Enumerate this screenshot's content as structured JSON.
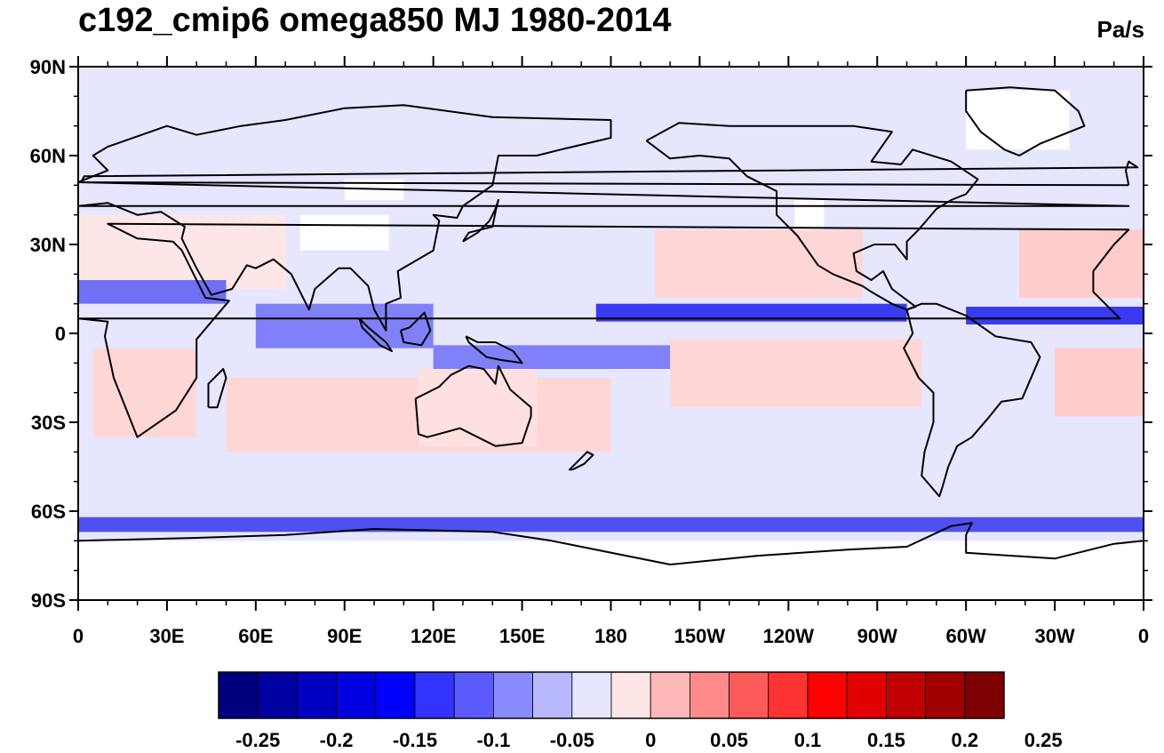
{
  "title": "c192_cmip6 omega850 MJ 1980-2014",
  "units": "Pa/s",
  "map": {
    "projection": "cylindrical-equidistant",
    "center_longitude": 180,
    "lon_range": [
      0,
      360
    ],
    "lat_range": [
      -90,
      90
    ],
    "lat_ticks": [
      {
        "value": 90,
        "label": "90N"
      },
      {
        "value": 60,
        "label": "60N"
      },
      {
        "value": 30,
        "label": "30N"
      },
      {
        "value": 0,
        "label": "0"
      },
      {
        "value": -30,
        "label": "30S"
      },
      {
        "value": -60,
        "label": "60S"
      },
      {
        "value": -90,
        "label": "90S"
      }
    ],
    "lon_ticks": [
      {
        "value": 0,
        "label": "0"
      },
      {
        "value": 30,
        "label": "30E"
      },
      {
        "value": 60,
        "label": "60E"
      },
      {
        "value": 90,
        "label": "90E"
      },
      {
        "value": 120,
        "label": "120E"
      },
      {
        "value": 150,
        "label": "150E"
      },
      {
        "value": 180,
        "label": "180"
      },
      {
        "value": 210,
        "label": "150W"
      },
      {
        "value": 240,
        "label": "120W"
      },
      {
        "value": 270,
        "label": "90W"
      },
      {
        "value": 300,
        "label": "60W"
      },
      {
        "value": 330,
        "label": "30W"
      },
      {
        "value": 360,
        "label": "0"
      }
    ],
    "background_color": "#e6e6ff",
    "features": [
      {
        "kind": "subsidence",
        "color": "#ffd6d6",
        "lon": [
          195,
          265
        ],
        "lat": [
          12,
          35
        ]
      },
      {
        "kind": "subsidence",
        "color": "#ffd6d6",
        "lon": [
          200,
          285
        ],
        "lat": [
          -25,
          -2
        ]
      },
      {
        "kind": "subsidence",
        "color": "#ffcccc",
        "lon": [
          330,
          360
        ],
        "lat": [
          -28,
          -5
        ]
      },
      {
        "kind": "subsidence",
        "color": "#ffd6d6",
        "lon": [
          50,
          180
        ],
        "lat": [
          -40,
          -15
        ]
      },
      {
        "kind": "subsidence",
        "color": "#ffcccc",
        "lon": [
          318,
          360
        ],
        "lat": [
          12,
          35
        ]
      },
      {
        "kind": "subsidence",
        "color": "#ffe6e6",
        "lon": [
          0,
          70
        ],
        "lat": [
          15,
          40
        ]
      },
      {
        "kind": "subsidence",
        "color": "#ffe0e0",
        "lon": [
          115,
          155
        ],
        "lat": [
          -38,
          -12
        ]
      },
      {
        "kind": "subsidence",
        "color": "#ffd6d6",
        "lon": [
          5,
          40
        ],
        "lat": [
          -35,
          -5
        ]
      },
      {
        "kind": "ascent",
        "color": "#3a3af0",
        "lon": [
          175,
          280
        ],
        "lat": [
          4,
          10
        ]
      },
      {
        "kind": "ascent",
        "color": "#3a3af0",
        "lon": [
          300,
          360
        ],
        "lat": [
          3,
          9
        ]
      },
      {
        "kind": "ascent",
        "color": "#8080f8",
        "lon": [
          120,
          200
        ],
        "lat": [
          -12,
          -4
        ]
      },
      {
        "kind": "ascent",
        "color": "#7070f5",
        "lon": [
          0,
          50
        ],
        "lat": [
          10,
          18
        ]
      },
      {
        "kind": "ascent",
        "color": "#8080f8",
        "lon": [
          60,
          120
        ],
        "lat": [
          -5,
          10
        ]
      },
      {
        "kind": "ascent",
        "color": "#5050f0",
        "lon": [
          0,
          360
        ],
        "lat": [
          -67,
          -62
        ]
      },
      {
        "kind": "no-data",
        "color": "#ffffff",
        "lon": [
          0,
          360
        ],
        "lat": [
          -90,
          -70
        ]
      },
      {
        "kind": "no-data",
        "color": "#ffffff",
        "lon": [
          75,
          105
        ],
        "lat": [
          28,
          40
        ]
      },
      {
        "kind": "no-data",
        "color": "#ffffff",
        "lon": [
          300,
          335
        ],
        "lat": [
          62,
          82
        ]
      },
      {
        "kind": "no-data",
        "color": "#ffffff",
        "lon": [
          242,
          252
        ],
        "lat": [
          35,
          45
        ]
      },
      {
        "kind": "no-data",
        "color": "#ffffff",
        "lon": [
          90,
          110
        ],
        "lat": [
          45,
          52
        ]
      }
    ],
    "coastlines": [
      {
        "name": "africa",
        "points": [
          [
            -17,
            21
          ],
          [
            -10,
            30
          ],
          [
            -5,
            35
          ],
          [
            10,
            37
          ],
          [
            20,
            32
          ],
          [
            32,
            31
          ],
          [
            35,
            28
          ],
          [
            43,
            12
          ],
          [
            51,
            11
          ],
          [
            40,
            -2
          ],
          [
            40,
            -15
          ],
          [
            33,
            -26
          ],
          [
            20,
            -35
          ],
          [
            18,
            -30
          ],
          [
            12,
            -15
          ],
          [
            9,
            -1
          ],
          [
            10,
            4
          ],
          [
            0,
            5
          ],
          [
            -8,
            5
          ],
          [
            -17,
            14
          ],
          [
            -17,
            21
          ]
        ]
      },
      {
        "name": "europe-asia",
        "points": [
          [
            0,
            51
          ],
          [
            -5,
            43
          ],
          [
            0,
            43
          ],
          [
            10,
            44
          ],
          [
            20,
            40
          ],
          [
            28,
            41
          ],
          [
            36,
            36
          ],
          [
            35,
            32
          ],
          [
            40,
            22
          ],
          [
            45,
            13
          ],
          [
            52,
            15
          ],
          [
            57,
            23
          ],
          [
            60,
            22
          ],
          [
            66,
            25
          ],
          [
            72,
            20
          ],
          [
            78,
            8
          ],
          [
            80,
            15
          ],
          [
            88,
            22
          ],
          [
            92,
            22
          ],
          [
            98,
            16
          ],
          [
            100,
            8
          ],
          [
            104,
            1
          ],
          [
            104,
            10
          ],
          [
            109,
            12
          ],
          [
            108,
            21
          ],
          [
            120,
            28
          ],
          [
            122,
            38
          ],
          [
            120,
            40
          ],
          [
            128,
            39
          ],
          [
            130,
            43
          ],
          [
            140,
            50
          ],
          [
            142,
            60
          ],
          [
            155,
            60
          ],
          [
            163,
            62
          ],
          [
            180,
            66
          ],
          [
            180,
            72
          ],
          [
            140,
            73
          ],
          [
            110,
            77
          ],
          [
            90,
            76
          ],
          [
            70,
            72
          ],
          [
            55,
            70
          ],
          [
            40,
            67
          ],
          [
            30,
            70
          ],
          [
            10,
            63
          ],
          [
            5,
            60
          ],
          [
            10,
            55
          ],
          [
            0,
            51
          ]
        ]
      },
      {
        "name": "north-america",
        "points": [
          [
            192,
            65
          ],
          [
            200,
            59
          ],
          [
            210,
            60
          ],
          [
            220,
            59
          ],
          [
            226,
            53
          ],
          [
            236,
            48
          ],
          [
            236,
            40
          ],
          [
            243,
            33
          ],
          [
            250,
            23
          ],
          [
            255,
            20
          ],
          [
            265,
            16
          ],
          [
            268,
            14
          ],
          [
            275,
            10
          ],
          [
            280,
            8
          ],
          [
            283,
            9
          ],
          [
            275,
            15
          ],
          [
            272,
            21
          ],
          [
            268,
            18
          ],
          [
            263,
            21
          ],
          [
            262,
            27
          ],
          [
            269,
            30
          ],
          [
            276,
            30
          ],
          [
            280,
            25
          ],
          [
            280,
            31
          ],
          [
            284,
            35
          ],
          [
            290,
            42
          ],
          [
            295,
            45
          ],
          [
            300,
            47
          ],
          [
            304,
            52
          ],
          [
            295,
            58
          ],
          [
            282,
            62
          ],
          [
            278,
            57
          ],
          [
            268,
            58
          ],
          [
            275,
            68
          ],
          [
            262,
            70
          ],
          [
            240,
            70
          ],
          [
            220,
            70
          ],
          [
            203,
            71
          ],
          [
            192,
            65
          ]
        ]
      },
      {
        "name": "south-america",
        "points": [
          [
            280,
            8
          ],
          [
            282,
            0
          ],
          [
            279,
            -5
          ],
          [
            284,
            -15
          ],
          [
            289,
            -20
          ],
          [
            289,
            -30
          ],
          [
            286,
            -40
          ],
          [
            285,
            -48
          ],
          [
            291,
            -55
          ],
          [
            292,
            -52
          ],
          [
            294,
            -45
          ],
          [
            297,
            -38
          ],
          [
            302,
            -35
          ],
          [
            308,
            -28
          ],
          [
            312,
            -23
          ],
          [
            319,
            -22
          ],
          [
            325,
            -8
          ],
          [
            322,
            -3
          ],
          [
            310,
            -1
          ],
          [
            300,
            6
          ],
          [
            290,
            10
          ],
          [
            285,
            10
          ],
          [
            280,
            8
          ]
        ]
      },
      {
        "name": "australia",
        "points": [
          [
            114,
            -22
          ],
          [
            115,
            -34
          ],
          [
            118,
            -35
          ],
          [
            129,
            -32
          ],
          [
            135,
            -35
          ],
          [
            141,
            -38
          ],
          [
            150,
            -37
          ],
          [
            153,
            -28
          ],
          [
            153,
            -25
          ],
          [
            146,
            -19
          ],
          [
            142,
            -11
          ],
          [
            141,
            -17
          ],
          [
            137,
            -12
          ],
          [
            132,
            -11
          ],
          [
            126,
            -14
          ],
          [
            122,
            -18
          ],
          [
            114,
            -22
          ]
        ]
      },
      {
        "name": "greenland",
        "points": [
          [
            300,
            82
          ],
          [
            315,
            83
          ],
          [
            330,
            82
          ],
          [
            338,
            75
          ],
          [
            340,
            70
          ],
          [
            325,
            64
          ],
          [
            318,
            60
          ],
          [
            313,
            62
          ],
          [
            305,
            68
          ],
          [
            300,
            75
          ],
          [
            300,
            82
          ]
        ]
      },
      {
        "name": "antarctica",
        "points": [
          [
            0,
            -70
          ],
          [
            40,
            -69
          ],
          [
            70,
            -68
          ],
          [
            100,
            -66
          ],
          [
            140,
            -67
          ],
          [
            160,
            -70
          ],
          [
            170,
            -72
          ],
          [
            200,
            -78
          ],
          [
            230,
            -75
          ],
          [
            260,
            -73
          ],
          [
            280,
            -72
          ],
          [
            295,
            -65
          ],
          [
            302,
            -64
          ],
          [
            300,
            -68
          ],
          [
            300,
            -74
          ],
          [
            330,
            -76
          ],
          [
            350,
            -71
          ],
          [
            360,
            -70
          ]
        ]
      },
      {
        "name": "new-zealand",
        "points": [
          [
            167,
            -46
          ],
          [
            171,
            -44
          ],
          [
            174,
            -41
          ],
          [
            172,
            -40
          ],
          [
            169,
            -43
          ],
          [
            166,
            -46
          ],
          [
            167,
            -46
          ]
        ]
      },
      {
        "name": "madagascar",
        "points": [
          [
            44,
            -25
          ],
          [
            47,
            -25
          ],
          [
            50,
            -15
          ],
          [
            49,
            -12
          ],
          [
            44,
            -17
          ],
          [
            44,
            -25
          ]
        ]
      },
      {
        "name": "japan",
        "points": [
          [
            130,
            31
          ],
          [
            132,
            34
          ],
          [
            136,
            35
          ],
          [
            140,
            36
          ],
          [
            141,
            41
          ],
          [
            142,
            45
          ],
          [
            141,
            42
          ],
          [
            139,
            38
          ],
          [
            135,
            34
          ],
          [
            130,
            31
          ]
        ]
      },
      {
        "name": "uk",
        "points": [
          [
            -5,
            50
          ],
          [
            1,
            51
          ],
          [
            2,
            53
          ],
          [
            -2,
            56
          ],
          [
            -5,
            58
          ],
          [
            -6,
            55
          ],
          [
            -5,
            50
          ]
        ]
      },
      {
        "name": "borneo",
        "points": [
          [
            109,
            1
          ],
          [
            110,
            -3
          ],
          [
            116,
            -4
          ],
          [
            119,
            1
          ],
          [
            117,
            7
          ],
          [
            112,
            2
          ],
          [
            109,
            1
          ]
        ]
      },
      {
        "name": "sumatra",
        "points": [
          [
            95,
            5
          ],
          [
            98,
            2
          ],
          [
            104,
            -3
          ],
          [
            106,
            -6
          ],
          [
            102,
            -4
          ],
          [
            96,
            2
          ],
          [
            95,
            5
          ]
        ]
      },
      {
        "name": "new-guinea",
        "points": [
          [
            131,
            -1
          ],
          [
            135,
            -3
          ],
          [
            141,
            -3
          ],
          [
            147,
            -6
          ],
          [
            150,
            -10
          ],
          [
            143,
            -9
          ],
          [
            138,
            -8
          ],
          [
            132,
            -3
          ],
          [
            131,
            -1
          ]
        ]
      }
    ]
  },
  "colorbar": {
    "colors": [
      "#00007f",
      "#0000a0",
      "#0000c0",
      "#0000e0",
      "#0000ff",
      "#3333ff",
      "#5a5aff",
      "#8a8aff",
      "#b8b8ff",
      "#e6e6ff",
      "#ffe6e6",
      "#ffb8b8",
      "#ff8a8a",
      "#ff5a5a",
      "#ff3333",
      "#ff0000",
      "#e00000",
      "#c00000",
      "#a00000",
      "#7f0000"
    ],
    "labels": [
      "-0.25",
      "-0.2",
      "-0.15",
      "-0.1",
      "-0.05",
      "0",
      "0.05",
      "0.1",
      "0.15",
      "0.2",
      "0.25"
    ],
    "label_after_box_index": [
      1,
      3,
      5,
      7,
      9,
      11,
      13,
      15,
      17
    ]
  }
}
